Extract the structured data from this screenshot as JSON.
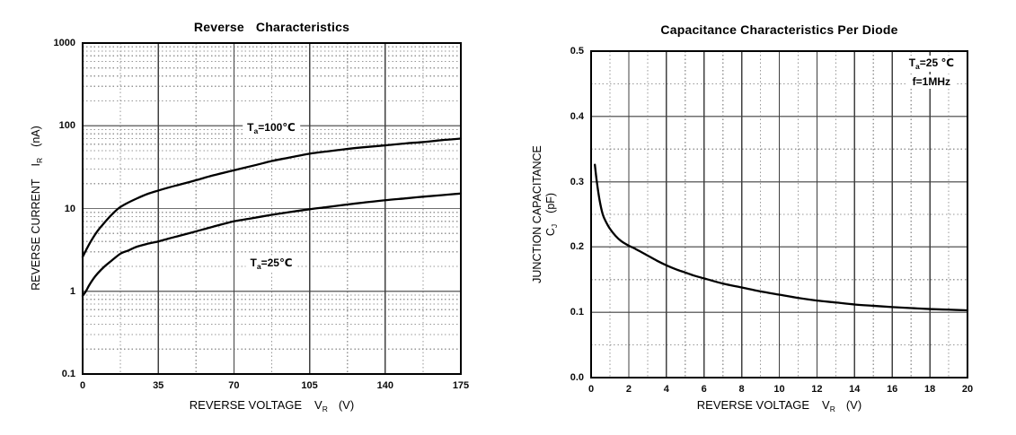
{
  "colors": {
    "background": "#ffffff",
    "text": "#000000",
    "curve": "#000000",
    "frame": "#000000",
    "grid_major_h": "#6f6f6f",
    "grid_major_v": "#404040",
    "grid_minor": "#979797"
  },
  "chart_data": [
    {
      "type": "line",
      "title": "Reverse Characteristics",
      "xlabel": {
        "text": "REVERSE VOLTAGE",
        "sym": "V",
        "sub": "R",
        "unit": "(V)"
      },
      "ylabel": {
        "text": "REVERSE CURRENT",
        "sym": "I",
        "sub": "R",
        "unit": "(nA)"
      },
      "x_axis": {
        "min": 0,
        "max": 175,
        "major_ticks": [
          0,
          35,
          70,
          105,
          140,
          175
        ],
        "tick_labels": [
          "0",
          "35",
          "70",
          "105",
          "140",
          "175"
        ],
        "minor_ticks": [
          17.5,
          52.5,
          87.5,
          122.5,
          157.5
        ]
      },
      "y_axis": {
        "scale": "log",
        "min": 0.1,
        "max": 1000,
        "major_ticks": [
          0.1,
          1,
          10,
          100,
          1000
        ],
        "tick_labels": [
          "0.1",
          "1",
          "10",
          "100",
          "1000"
        ]
      },
      "series": [
        {
          "label": "Ta=100℃",
          "name_parts": {
            "sym": "T",
            "sub": "a",
            "rest": "=100℃"
          },
          "points": [
            [
              0,
              2.6
            ],
            [
              2,
              3.3
            ],
            [
              4,
              4.1
            ],
            [
              7,
              5.4
            ],
            [
              10,
              6.7
            ],
            [
              13,
              8.2
            ],
            [
              16.5,
              10
            ],
            [
              20,
              11.4
            ],
            [
              25,
              13.2
            ],
            [
              30,
              15
            ],
            [
              35,
              16.5
            ],
            [
              40,
              18
            ],
            [
              45,
              19.5
            ],
            [
              52.5,
              22
            ],
            [
              60,
              25
            ],
            [
              70,
              29
            ],
            [
              80,
              33.5
            ],
            [
              87.5,
              37.5
            ],
            [
              95,
              41
            ],
            [
              105,
              46
            ],
            [
              113,
              49
            ],
            [
              122.5,
              52.5
            ],
            [
              130,
              55
            ],
            [
              140,
              58
            ],
            [
              150,
              61.5
            ],
            [
              157.5,
              63.5
            ],
            [
              166,
              67
            ],
            [
              175,
              70
            ]
          ]
        },
        {
          "label": "Ta=25℃",
          "name_parts": {
            "sym": "T",
            "sub": "a",
            "rest": "=25℃"
          },
          "points": [
            [
              0,
              0.88
            ],
            [
              1.5,
              1.0
            ],
            [
              3,
              1.18
            ],
            [
              5,
              1.42
            ],
            [
              7,
              1.65
            ],
            [
              10,
              1.98
            ],
            [
              13,
              2.3
            ],
            [
              17.5,
              2.85
            ],
            [
              21,
              3.1
            ],
            [
              25,
              3.45
            ],
            [
              30,
              3.75
            ],
            [
              35,
              4.0
            ],
            [
              40,
              4.35
            ],
            [
              45,
              4.7
            ],
            [
              52.5,
              5.3
            ],
            [
              60,
              6.0
            ],
            [
              70,
              7.0
            ],
            [
              78,
              7.6
            ],
            [
              87.5,
              8.4
            ],
            [
              95,
              9.0
            ],
            [
              105,
              9.8
            ],
            [
              113,
              10.4
            ],
            [
              122.5,
              11.2
            ],
            [
              130,
              11.8
            ],
            [
              140,
              12.6
            ],
            [
              150,
              13.3
            ],
            [
              157.5,
              13.9
            ],
            [
              166,
              14.5
            ],
            [
              175,
              15.2
            ]
          ]
        }
      ]
    },
    {
      "type": "line",
      "title": "Capacitance Characteristics Per Diode",
      "xlabel": {
        "text": "REVERSE VOLTAGE",
        "sym": "V",
        "sub": "R",
        "unit": "(V)"
      },
      "ylabel": {
        "line1": "JUNCTION CAPACITANCE",
        "sym": "C",
        "sub": "J",
        "unit": "(pF)"
      },
      "conditions": [
        {
          "sym": "T",
          "sub": "a",
          "rest": "=25 ℃"
        },
        {
          "text": "f=1MHz"
        }
      ],
      "x_axis": {
        "min": 0,
        "max": 20,
        "major_ticks": [
          0,
          2,
          4,
          6,
          8,
          10,
          12,
          14,
          16,
          18,
          20
        ],
        "tick_labels": [
          "0",
          "2",
          "4",
          "6",
          "8",
          "10",
          "12",
          "14",
          "16",
          "18",
          "20"
        ],
        "minor_ticks": [
          1,
          3,
          5,
          7,
          9,
          11,
          13,
          15,
          17,
          19
        ]
      },
      "y_axis": {
        "scale": "linear",
        "min": 0,
        "max": 0.5,
        "major_ticks": [
          0,
          0.1,
          0.2,
          0.3,
          0.4,
          0.5
        ],
        "tick_labels": [
          "0.0",
          "0.1",
          "0.2",
          "0.3",
          "0.4",
          "0.5"
        ],
        "minor_ticks": [
          0.05,
          0.15,
          0.25,
          0.35,
          0.45
        ]
      },
      "series": [
        {
          "label": "CJ",
          "points": [
            [
              0.2,
              0.326
            ],
            [
              0.3,
              0.301
            ],
            [
              0.45,
              0.272
            ],
            [
              0.62,
              0.25
            ],
            [
              0.8,
              0.238
            ],
            [
              1,
              0.228
            ],
            [
              1.3,
              0.217
            ],
            [
              1.6,
              0.209
            ],
            [
              2,
              0.202
            ],
            [
              2.3,
              0.198
            ],
            [
              3,
              0.187
            ],
            [
              3.5,
              0.179
            ],
            [
              4,
              0.172
            ],
            [
              4.5,
              0.166
            ],
            [
              5,
              0.161
            ],
            [
              5.5,
              0.156
            ],
            [
              6,
              0.152
            ],
            [
              7,
              0.144
            ],
            [
              8,
              0.138
            ],
            [
              9,
              0.132
            ],
            [
              10,
              0.127
            ],
            [
              11,
              0.122
            ],
            [
              12,
              0.118
            ],
            [
              13,
              0.115
            ],
            [
              14,
              0.112
            ],
            [
              15,
              0.11
            ],
            [
              16,
              0.108
            ],
            [
              17,
              0.1065
            ],
            [
              18,
              0.105
            ],
            [
              19,
              0.104
            ],
            [
              20,
              0.103
            ]
          ]
        }
      ]
    }
  ]
}
